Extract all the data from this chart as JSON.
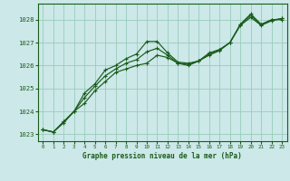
{
  "title": "Graphe pression niveau de la mer (hPa)",
  "bg_color": "#cce8e8",
  "grid_color": "#99ccbb",
  "line_color": "#1a5c1a",
  "xlim": [
    -0.5,
    23.5
  ],
  "ylim": [
    1022.7,
    1028.7
  ],
  "yticks": [
    1023,
    1024,
    1025,
    1026,
    1027,
    1028
  ],
  "xticks": [
    0,
    1,
    2,
    3,
    4,
    5,
    6,
    7,
    8,
    9,
    10,
    11,
    12,
    13,
    14,
    15,
    16,
    17,
    18,
    19,
    20,
    21,
    22,
    23
  ],
  "series": [
    [
      1023.2,
      1023.1,
      1023.5,
      1024.0,
      1024.8,
      1025.2,
      1025.8,
      1026.0,
      1026.3,
      1026.5,
      1027.05,
      1027.05,
      1026.55,
      1026.15,
      1026.1,
      1026.2,
      1026.55,
      1026.7,
      1027.0,
      1027.8,
      1028.25,
      1027.8,
      1028.0,
      1028.0
    ],
    [
      1023.2,
      1023.1,
      1023.55,
      1024.0,
      1024.35,
      1024.9,
      1025.3,
      1025.7,
      1025.85,
      1026.0,
      1026.1,
      1026.45,
      1026.35,
      1026.1,
      1026.0,
      1026.2,
      1026.45,
      1026.65,
      1027.0,
      1027.75,
      1028.1,
      1027.75,
      1027.95,
      1028.05
    ],
    [
      1023.2,
      1023.1,
      1023.55,
      1024.0,
      1024.6,
      1025.1,
      1025.55,
      1025.85,
      1026.1,
      1026.25,
      1026.6,
      1026.75,
      1026.45,
      1026.1,
      1026.05,
      1026.2,
      1026.5,
      1026.68,
      1027.0,
      1027.78,
      1028.18,
      1027.78,
      1027.98,
      1028.05
    ]
  ]
}
